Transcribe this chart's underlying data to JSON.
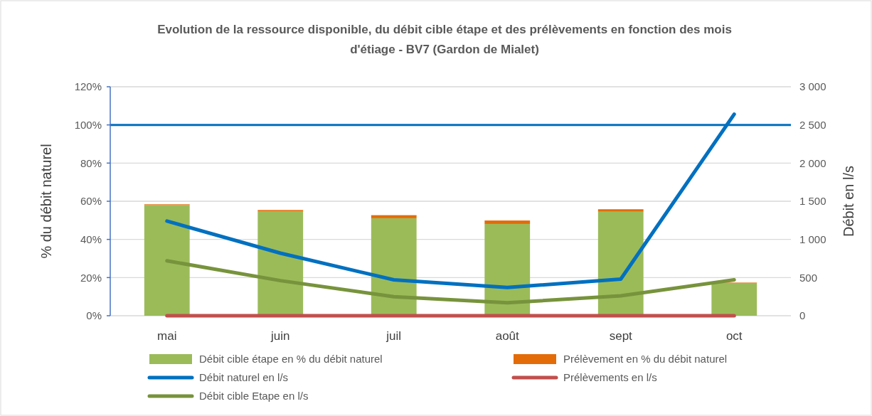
{
  "chart_data": {
    "type": "bar",
    "title": "Evolution de la ressource disponible, du débit cible étape et des prélèvements en fonction des mois d'étiage - BV7 (Gardon de Mialet)",
    "ylabel": "% du débit naturel",
    "y2label": "Débit en l/s",
    "categories": [
      "mai",
      "juin",
      "juil",
      "août",
      "sept",
      "oct"
    ],
    "stacked": true,
    "series": [
      {
        "name": "Débit cible étape en % du débit naturel",
        "type": "bar",
        "color": "#9bbb59",
        "values": [
          58,
          54.8,
          51.1,
          48.1,
          54.5,
          17.2
        ]
      },
      {
        "name": "Prélèvement en % du débit naturel",
        "type": "bar",
        "color": "#e36c09",
        "values": [
          0.4,
          0.6,
          1.6,
          1.8,
          1.3,
          0.2
        ]
      },
      {
        "name": "Débit naturel en l/s",
        "type": "line",
        "axis": "y2",
        "color": "#0070c0",
        "values": [
          1240,
          820,
          470,
          370,
          480,
          2640
        ]
      },
      {
        "name": "Prélèvements en l/s",
        "type": "line",
        "axis": "y2",
        "color": "#c0504d",
        "values": [
          0,
          0,
          0,
          0,
          0,
          0
        ]
      },
      {
        "name": "Débit cible Etape en l/s",
        "type": "line",
        "axis": "y2",
        "color": "#77933c",
        "values": [
          720,
          460,
          250,
          170,
          260,
          470
        ]
      }
    ],
    "ylim": [
      0,
      120
    ],
    "yticks": [
      {
        "value": 0,
        "label": "0%"
      },
      {
        "value": 20,
        "label": "20%"
      },
      {
        "value": 40,
        "label": "40%"
      },
      {
        "value": 60,
        "label": "60%"
      },
      {
        "value": 80,
        "label": "80%"
      },
      {
        "value": 100,
        "label": "100%"
      },
      {
        "value": 120,
        "label": "120%"
      }
    ],
    "y2lim": [
      0,
      3000
    ],
    "y2ticks": [
      0,
      500,
      {
        "value": 1000,
        "label": "1 000"
      },
      {
        "value": 1500,
        "label": "1 500"
      },
      {
        "value": 2000,
        "label": "2 000"
      },
      {
        "value": 2500,
        "label": "2 500"
      },
      {
        "value": 3000,
        "label": "3 000"
      }
    ],
    "ref_lines": [
      {
        "axis": "y",
        "value": 100,
        "color": "#0070c0"
      }
    ],
    "grid": "y",
    "legend": "bottom",
    "marker": "none",
    "line_style": "solid"
  }
}
